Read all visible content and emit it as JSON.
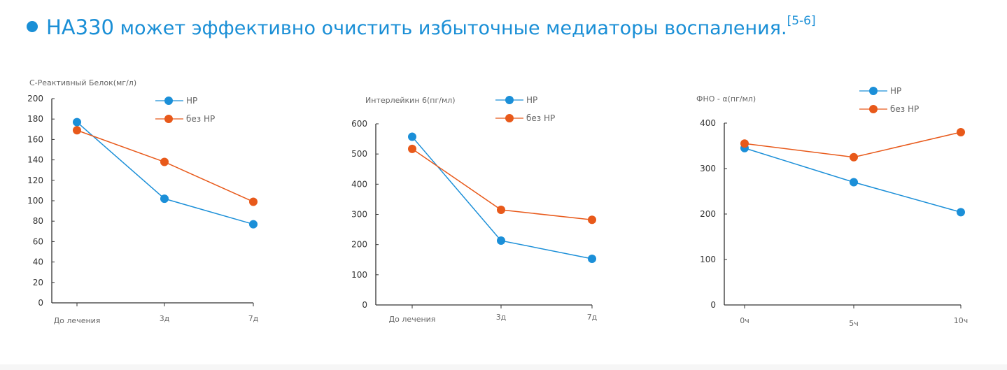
{
  "title": {
    "highlight": "HA330",
    "text": " может эффективно очистить избыточные медиаторы воспаления.",
    "ref": "[5-6]"
  },
  "colors": {
    "accent": "#1a8fd6",
    "hp": "#1b8fd8",
    "no_hp": "#e8591a",
    "axis": "#333333"
  },
  "chart_data": [
    {
      "type": "line",
      "ylabel": "С-Реактивный Белок(мг/л)",
      "categories": [
        "До лечения",
        "3д",
        "7д"
      ],
      "ylim": [
        0,
        200
      ],
      "yticks": [
        0,
        20,
        40,
        60,
        80,
        100,
        120,
        140,
        160,
        180,
        200
      ],
      "series": [
        {
          "name": "HP",
          "values": [
            177,
            102,
            77
          ]
        },
        {
          "name": "без HP",
          "values": [
            169,
            138,
            99
          ]
        }
      ],
      "legend": "top-center"
    },
    {
      "type": "line",
      "ylabel": "Интерлейкин 6(пг/мл)",
      "categories": [
        "До лечения",
        "3д",
        "7д"
      ],
      "ylim": [
        0,
        600
      ],
      "yticks": [
        0,
        100,
        200,
        300,
        400,
        500,
        600
      ],
      "series": [
        {
          "name": "HP",
          "values": [
            557,
            213,
            153
          ]
        },
        {
          "name": "без HP",
          "values": [
            517,
            315,
            282
          ]
        }
      ],
      "legend": "top-center"
    },
    {
      "type": "line",
      "ylabel": "ФНО - α(пг/мл)",
      "categories": [
        "0ч",
        "5ч",
        "10ч"
      ],
      "ylim": [
        0,
        400
      ],
      "yticks": [
        0,
        100,
        200,
        300,
        400
      ],
      "series": [
        {
          "name": "HP",
          "values": [
            345,
            270,
            204
          ]
        },
        {
          "name": "без HP",
          "values": [
            355,
            325,
            380
          ]
        }
      ],
      "legend": "top-right"
    }
  ]
}
